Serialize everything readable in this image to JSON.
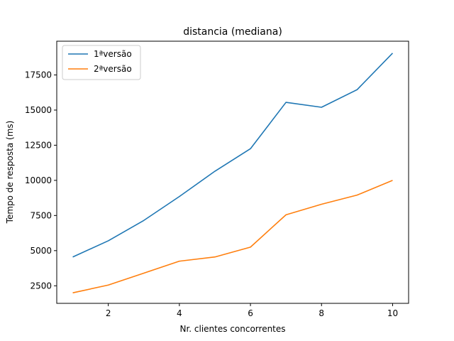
{
  "chart_data": {
    "type": "line",
    "title": "distancia (mediana)",
    "xlabel": "Nr. clientes concorrentes",
    "ylabel": "Tempo de resposta (ms)",
    "x": [
      1,
      2,
      3,
      4,
      5,
      6,
      7,
      8,
      9,
      10
    ],
    "xlim": [
      0.55,
      10.45
    ],
    "ylim": [
      1250,
      19900
    ],
    "xticks": [
      2,
      4,
      6,
      8,
      10
    ],
    "yticks": [
      2500,
      5000,
      7500,
      10000,
      12500,
      15000,
      17500
    ],
    "grid": false,
    "legend_position": "upper-left",
    "series": [
      {
        "name": "1ªversão",
        "color": "#1f77b4",
        "values": [
          4550,
          5700,
          7150,
          8850,
          10650,
          12250,
          15550,
          15200,
          16450,
          19050
        ]
      },
      {
        "name": "2ªversão",
        "color": "#ff7f0e",
        "values": [
          2000,
          2550,
          3400,
          4250,
          4550,
          5250,
          7550,
          8300,
          8950,
          10000
        ]
      }
    ]
  }
}
